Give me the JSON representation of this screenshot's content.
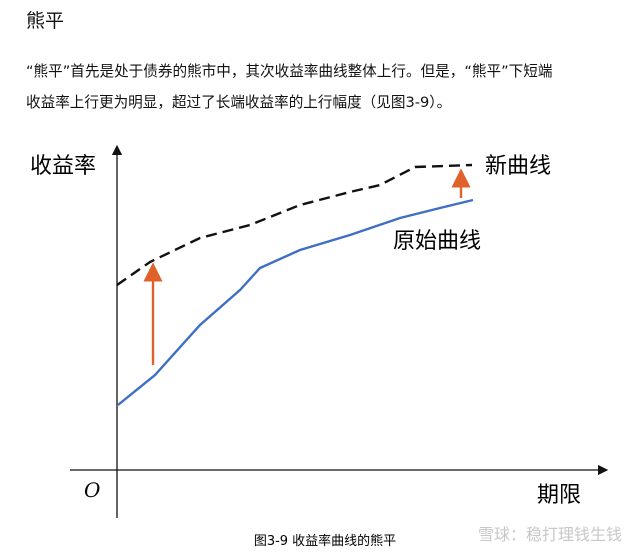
{
  "heading": "熊平",
  "paragraph": {
    "lines": [
      "“熊平”首先是处于债券的熊市中，其次收益率曲线整体上行。但是，“熊平”下短端",
      "收益率上行更为明显，超过了长端收益率的上行幅度（见图3-9）。"
    ]
  },
  "figure": {
    "y_axis_label": "收益率",
    "x_axis_label": "期限",
    "origin_label": "O",
    "new_curve_label": "新曲线",
    "original_curve_label": "原始曲线",
    "caption": "图3-9 收益率曲线的熊平"
  },
  "watermark": "雪球：稳打理钱生钱"
}
